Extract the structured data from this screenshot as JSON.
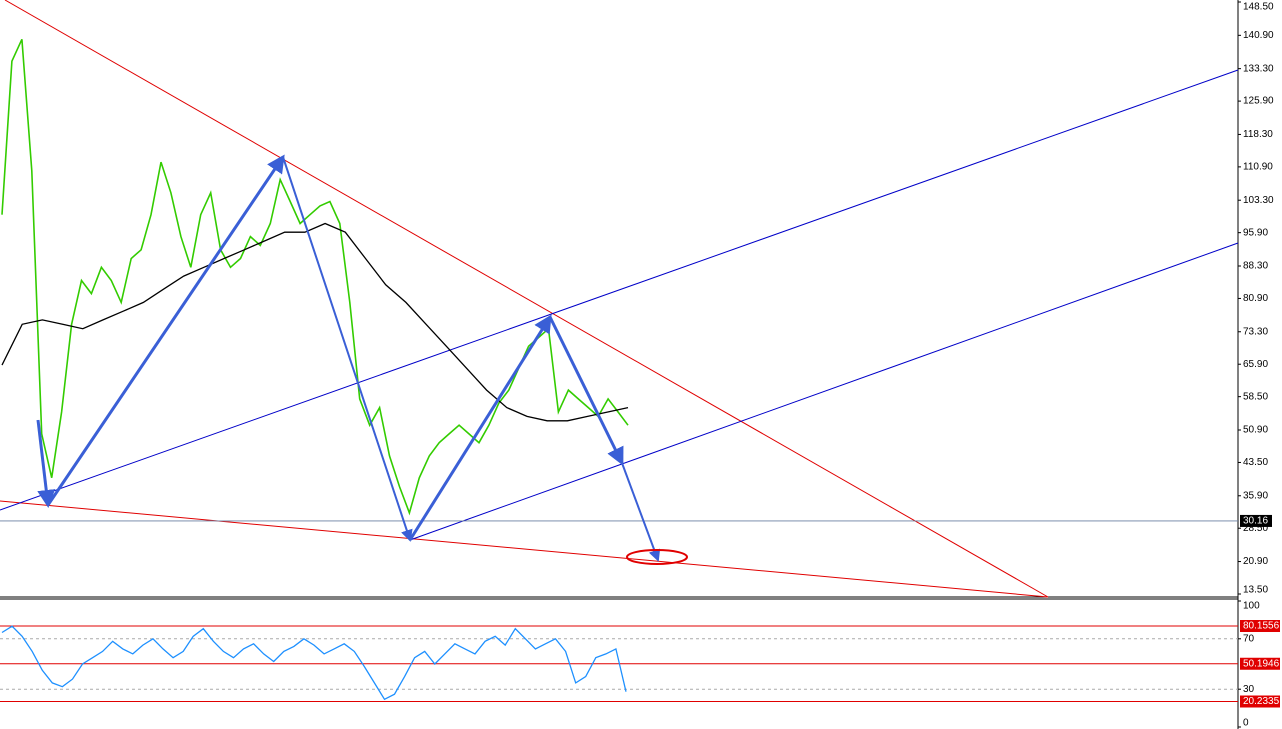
{
  "chart_data": [
    {
      "type": "line",
      "ylim": [
        13.5,
        148.5
      ],
      "yticks": [
        {
          "value": 148.5,
          "label": "148.50"
        },
        {
          "value": 140.9,
          "label": "140.90"
        },
        {
          "value": 133.3,
          "label": "133.30"
        },
        {
          "value": 125.9,
          "label": "125.90"
        },
        {
          "value": 118.3,
          "label": "118.30"
        },
        {
          "value": 110.9,
          "label": "110.90"
        },
        {
          "value": 103.3,
          "label": "103.30"
        },
        {
          "value": 95.9,
          "label": "95.90"
        },
        {
          "value": 88.3,
          "label": "88.30"
        },
        {
          "value": 80.9,
          "label": "80.90"
        },
        {
          "value": 73.3,
          "label": "73.30"
        },
        {
          "value": 65.9,
          "label": "65.90"
        },
        {
          "value": 58.5,
          "label": "58.50"
        },
        {
          "value": 50.9,
          "label": "50.90"
        },
        {
          "value": 43.5,
          "label": "43.50"
        },
        {
          "value": 35.9,
          "label": "35.90"
        },
        {
          "value": 28.5,
          "label": "28.50"
        },
        {
          "value": 20.9,
          "label": "20.90"
        },
        {
          "value": 13.5,
          "label": "13.50"
        }
      ],
      "current_price": 30.16,
      "series": [
        {
          "color": "#33cc00",
          "values": [
            100,
            135,
            140,
            110,
            50,
            40,
            55,
            75,
            85,
            82,
            88,
            85,
            80,
            90,
            92,
            100,
            112,
            105,
            95,
            88,
            100,
            105,
            92,
            88,
            90,
            95,
            93,
            98,
            108,
            103,
            98,
            100,
            102,
            103,
            98,
            80,
            58,
            52,
            56,
            45,
            38,
            32,
            40,
            45,
            48,
            50,
            52,
            50,
            48,
            52,
            57,
            60,
            65,
            70,
            72,
            74,
            55,
            60,
            58,
            56,
            54,
            58,
            55,
            52
          ]
        },
        {
          "color": "#000000",
          "values": [
            65.7,
            75,
            76,
            75,
            74,
            76,
            78,
            80,
            83,
            86,
            88,
            90,
            92,
            94,
            96,
            96,
            98,
            96,
            90,
            84,
            80,
            75,
            70,
            65,
            60,
            56,
            54,
            53,
            53,
            54,
            55,
            56
          ]
        }
      ]
    },
    {
      "type": "line",
      "ylim": [
        0,
        100
      ],
      "yticks": [
        100,
        70,
        30,
        0
      ],
      "levels": [
        80.1556,
        50.1946,
        20.2335
      ],
      "series": [
        {
          "color": "#1e90ff",
          "values": [
            75,
            80,
            72,
            60,
            45,
            35,
            32,
            38,
            50,
            55,
            60,
            68,
            62,
            58,
            65,
            70,
            62,
            55,
            60,
            72,
            78,
            68,
            60,
            55,
            62,
            66,
            58,
            52,
            60,
            64,
            70,
            65,
            58,
            62,
            66,
            60,
            48,
            35,
            22,
            26,
            40,
            55,
            60,
            50,
            58,
            66,
            62,
            58,
            68,
            72,
            65,
            78,
            70,
            62,
            66,
            70,
            60,
            35,
            40,
            55,
            58,
            62,
            28
          ]
        }
      ]
    }
  ]
}
